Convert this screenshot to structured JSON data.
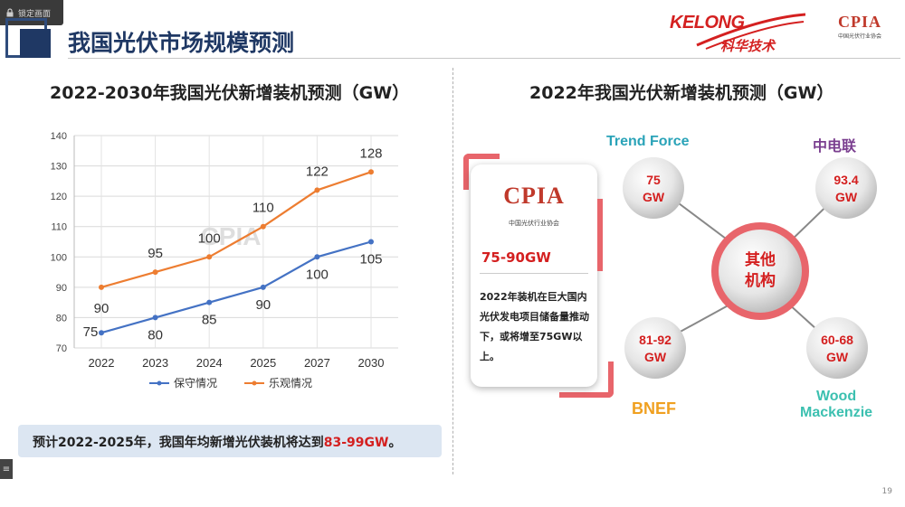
{
  "toolbar": {
    "lock_label": "锁定画面"
  },
  "slide": {
    "title": "我国光伏市场规模预测",
    "page_number": "19"
  },
  "logos": {
    "kelong_en": "KELONG",
    "kelong_cn": "科华技术",
    "cpia": "CPIA",
    "cpia_sub": "中国光伏行业协会"
  },
  "left_panel": {
    "title": "2022-2030年我国光伏新增装机预测（GW）",
    "callout_prefix": "预计2022-2025年，我国年均新增光伏装机将达到",
    "callout_highlight": "83-99GW",
    "callout_suffix": "。"
  },
  "chart_data": {
    "type": "line",
    "categories": [
      "2022",
      "2023",
      "2024",
      "2025",
      "2027",
      "2030"
    ],
    "ylim": [
      70,
      140
    ],
    "yticks": [
      70,
      80,
      90,
      100,
      110,
      120,
      130,
      140
    ],
    "grid": true,
    "legend_position": "bottom",
    "watermark": "CPIA",
    "series": [
      {
        "name": "保守情况",
        "values": [
          75,
          80,
          85,
          90,
          100,
          105
        ],
        "color": "#4472c4"
      },
      {
        "name": "乐观情况",
        "values": [
          90,
          95,
          100,
          110,
          122,
          128
        ],
        "color": "#ed7d31"
      }
    ]
  },
  "right_panel": {
    "title": "2022年我国光伏新增装机预测（GW）",
    "card": {
      "logo": "CPIA",
      "logo_sub": "中国光伏行业协会",
      "range": "75-90GW",
      "text": "2022年装机在巨大国内光伏发电项目储备量推动下，或将增至75GW以上。"
    },
    "center": {
      "line1": "其他",
      "line2": "机构"
    },
    "sources": [
      {
        "name": "Trend Force",
        "value": "75",
        "unit": "GW",
        "color": "#2aa3b8"
      },
      {
        "name": "中电联",
        "value": "93.4",
        "unit": "GW",
        "color": "#7a3e8f"
      },
      {
        "name": "BNEF",
        "value": "81-92",
        "unit": "GW",
        "color": "#f0a020"
      },
      {
        "name_line1": "Wood",
        "name_line2": "Mackenzie",
        "value": "60-68",
        "unit": "GW",
        "color": "#3cc0b0"
      }
    ]
  }
}
